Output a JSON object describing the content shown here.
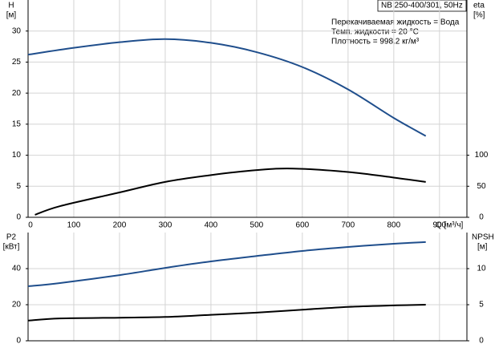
{
  "chart_data": [
    {
      "type": "line",
      "title": "NB 250-400/301, 50Hz",
      "annotations": [
        "Перекачиваемая жидкость = Вода",
        "Темп. жидкости = 20 °C",
        "Плотность = 998.2 кг/м³"
      ],
      "ylabel": "H",
      "yunit": "[м]",
      "y2label": "eta",
      "y2unit": "[%]",
      "xlabel": "Q [м³/ч]",
      "xlim": [
        0,
        960
      ],
      "xticks": [
        0,
        100,
        200,
        300,
        400,
        500,
        600,
        700,
        800,
        900
      ],
      "ylim": [
        0,
        35
      ],
      "yticks": [
        0,
        5,
        10,
        15,
        20,
        25,
        30
      ],
      "y2lim": [
        0,
        350
      ],
      "y2ticks": [
        0,
        50,
        100
      ],
      "grid": true,
      "series": [
        {
          "color": "#1f4e8c",
          "x": [
            0,
            100,
            200,
            300,
            400,
            500,
            600,
            700,
            800,
            870
          ],
          "values": [
            26.2,
            27.3,
            28.2,
            28.7,
            28.1,
            26.6,
            24.2,
            20.6,
            16.0,
            13.1
          ]
        },
        {
          "color": "#000000",
          "axis": "y2",
          "x": [
            15,
            70,
            200,
            300,
            400,
            500,
            580,
            700,
            800,
            870
          ],
          "values": [
            4,
            18,
            40,
            57,
            68,
            76,
            78.5,
            73,
            64,
            57
          ]
        }
      ]
    },
    {
      "type": "line",
      "ylabel": "P2",
      "yunit": "[кВт]",
      "y2label": "NPSH",
      "y2unit": "[м]",
      "xlim": [
        0,
        960
      ],
      "ylim": [
        0,
        60
      ],
      "yticks": [
        0,
        20,
        40
      ],
      "y2lim": [
        0,
        15
      ],
      "y2ticks": [
        0,
        5,
        10
      ],
      "grid": true,
      "series": [
        {
          "color": "#1f4e8c",
          "x": [
            0,
            70,
            200,
            300,
            400,
            500,
            600,
            700,
            800,
            870
          ],
          "values": [
            30.2,
            32,
            36.4,
            40.4,
            44,
            47,
            49.8,
            52,
            53.8,
            54.7
          ]
        },
        {
          "color": "#000000",
          "axis": "y2",
          "x": [
            0,
            70,
            200,
            300,
            400,
            500,
            600,
            700,
            800,
            870
          ],
          "values": [
            2.8,
            3.1,
            3.2,
            3.3,
            3.6,
            3.9,
            4.3,
            4.7,
            4.9,
            5.0
          ]
        }
      ]
    }
  ]
}
